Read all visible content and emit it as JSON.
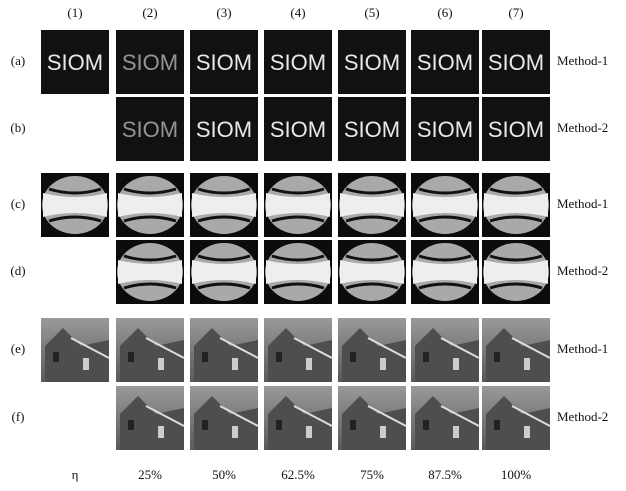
{
  "column_headers": [
    "(1)",
    "(2)",
    "(3)",
    "(4)",
    "(5)",
    "(6)",
    "(7)"
  ],
  "rows": [
    {
      "label": "(a)",
      "method": "Method-1"
    },
    {
      "label": "(b)",
      "method": "Method-2"
    },
    {
      "label": "(c)",
      "method": "Method-1"
    },
    {
      "label": "(d)",
      "method": "Method-2"
    },
    {
      "label": "(e)",
      "method": "Method-1"
    },
    {
      "label": "(f)",
      "method": "Method-2"
    }
  ],
  "image_text": "SIOM",
  "bottom_labels": [
    "η",
    "25%",
    "50%",
    "62.5%",
    "75%",
    "87.5%",
    "100%"
  ]
}
